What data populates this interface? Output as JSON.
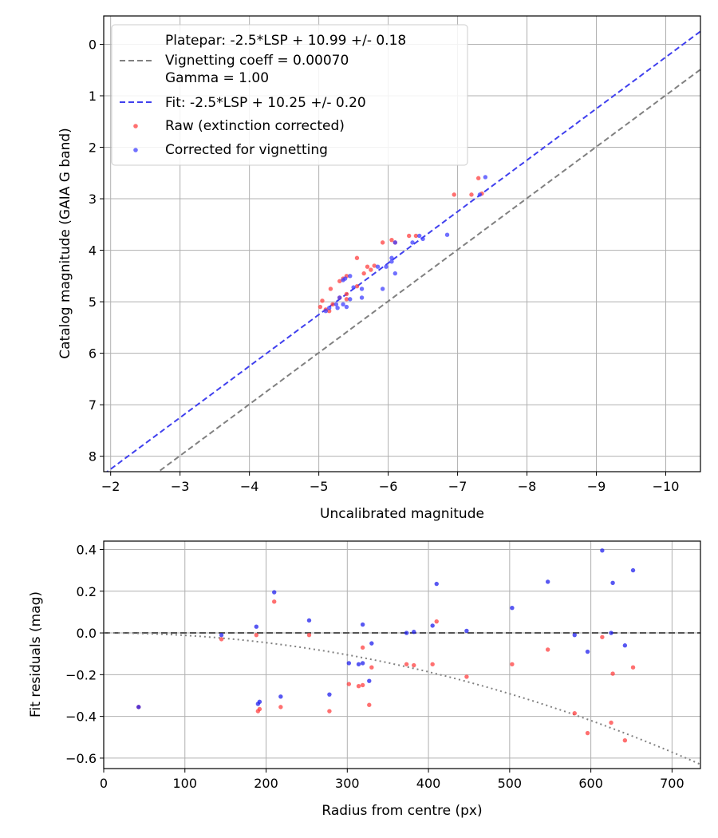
{
  "chart_data": [
    {
      "type": "scatter",
      "xlabel": "Uncalibrated magnitude",
      "ylabel": "Catalog magnitude (GAIA G band)",
      "xlim": [
        -1.9,
        -10.5
      ],
      "ylim": [
        8.3,
        -0.55
      ],
      "xticks": [
        -2,
        -3,
        -4,
        -5,
        -6,
        -7,
        -8,
        -9,
        -10
      ],
      "xtick_labels": [
        "−2",
        "−3",
        "−4",
        "−5",
        "−6",
        "−7",
        "−8",
        "−9",
        "−10"
      ],
      "yticks": [
        0,
        1,
        2,
        3,
        4,
        5,
        6,
        7,
        8
      ],
      "ytick_labels": [
        "0",
        "1",
        "2",
        "3",
        "4",
        "5",
        "6",
        "7",
        "8"
      ],
      "grid": true,
      "legend_position": "top-left",
      "legend": [
        {
          "kind": "blank",
          "label": "Platepar: -2.5*LSP + 10.99 +/- 0.18"
        },
        {
          "kind": "dash",
          "color": "#808080",
          "label": "Vignetting coeff = 0.00070"
        },
        {
          "kind": "blank",
          "label": "Gamma = 1.00"
        },
        {
          "kind": "dash",
          "color": "#4040ee",
          "label": "Fit: -2.5*LSP + 10.25 +/- 0.20"
        },
        {
          "kind": "dot",
          "color": "#ff4040",
          "label": "Raw (extinction corrected)"
        },
        {
          "kind": "dot",
          "color": "#4040ff",
          "label": "Corrected for vignetting"
        }
      ],
      "lines": [
        {
          "name": "Platepar",
          "color": "#808080",
          "intercept": 10.99
        },
        {
          "name": "Fit",
          "color": "#4040ee",
          "intercept": 10.25
        }
      ],
      "series": [
        {
          "name": "Raw (extinction corrected)",
          "color": "#ff4040",
          "points": [
            [
              -6.95,
              2.92
            ],
            [
              -7.2,
              2.92
            ],
            [
              -7.3,
              2.6
            ],
            [
              -7.35,
              2.9
            ],
            [
              -6.3,
              3.72
            ],
            [
              -6.4,
              3.72
            ],
            [
              -5.92,
              3.85
            ],
            [
              -6.05,
              3.8
            ],
            [
              -6.1,
              3.85
            ],
            [
              -5.55,
              4.15
            ],
            [
              -5.7,
              4.32
            ],
            [
              -5.75,
              4.38
            ],
            [
              -5.65,
              4.45
            ],
            [
              -5.8,
              4.3
            ],
            [
              -5.55,
              4.7
            ],
            [
              -5.4,
              4.5
            ],
            [
              -5.3,
              4.6
            ],
            [
              -5.35,
              4.55
            ],
            [
              -5.4,
              4.85
            ],
            [
              -5.4,
              4.95
            ],
            [
              -5.17,
              4.75
            ],
            [
              -5.3,
              4.92
            ],
            [
              -5.05,
              4.98
            ],
            [
              -5.2,
              5.05
            ],
            [
              -5.02,
              5.1
            ],
            [
              -5.1,
              5.15
            ],
            [
              -5.15,
              5.18
            ]
          ]
        },
        {
          "name": "Corrected for vignetting",
          "color": "#4040ff",
          "points": [
            [
              -7.4,
              2.58
            ],
            [
              -7.32,
              2.92
            ],
            [
              -6.85,
              3.7
            ],
            [
              -6.45,
              3.72
            ],
            [
              -6.5,
              3.78
            ],
            [
              -6.35,
              3.85
            ],
            [
              -6.1,
              3.85
            ],
            [
              -6.05,
              4.15
            ],
            [
              -6.05,
              4.22
            ],
            [
              -5.97,
              4.32
            ],
            [
              -5.85,
              4.32
            ],
            [
              -6.1,
              4.45
            ],
            [
              -5.45,
              4.5
            ],
            [
              -5.35,
              4.58
            ],
            [
              -5.38,
              4.55
            ],
            [
              -5.5,
              4.72
            ],
            [
              -5.62,
              4.75
            ],
            [
              -5.92,
              4.75
            ],
            [
              -5.62,
              4.92
            ],
            [
              -5.45,
              4.95
            ],
            [
              -5.3,
              4.92
            ],
            [
              -5.35,
              5.05
            ],
            [
              -5.25,
              5.05
            ],
            [
              -5.15,
              5.12
            ],
            [
              -5.1,
              5.18
            ],
            [
              -5.27,
              5.12
            ],
            [
              -5.4,
              5.1
            ]
          ]
        }
      ]
    },
    {
      "type": "scatter",
      "xlabel": "Radius from centre (px)",
      "ylabel": "Fit residuals (mag)",
      "xlim": [
        0,
        735
      ],
      "ylim": [
        -0.65,
        0.44
      ],
      "xticks": [
        0,
        100,
        200,
        300,
        400,
        500,
        600,
        700
      ],
      "xtick_labels": [
        "0",
        "100",
        "200",
        "300",
        "400",
        "500",
        "600",
        "700"
      ],
      "yticks": [
        0.4,
        0.2,
        0.0,
        -0.2,
        -0.4,
        -0.6
      ],
      "ytick_labels": [
        "0.4",
        "0.2",
        "0.0",
        "−0.2",
        "−0.4",
        "−0.6"
      ],
      "grid": true,
      "lines": [
        {
          "name": "zero",
          "color": "#555555",
          "style": "dashed",
          "value": 0.0
        },
        {
          "name": "vignetting",
          "color": "#808080",
          "style": "dotted",
          "coeff": 0.0007
        }
      ],
      "series": [
        {
          "name": "Raw (extinction corrected)",
          "color": "#ff4040",
          "points": [
            [
              43,
              -0.355
            ],
            [
              145,
              -0.03
            ],
            [
              188,
              -0.01
            ],
            [
              190,
              -0.375
            ],
            [
              192,
              -0.365
            ],
            [
              210,
              0.15
            ],
            [
              218,
              -0.355
            ],
            [
              253,
              -0.01
            ],
            [
              278,
              -0.375
            ],
            [
              302,
              -0.245
            ],
            [
              314,
              -0.255
            ],
            [
              319,
              -0.25
            ],
            [
              319,
              -0.07
            ],
            [
              327,
              -0.345
            ],
            [
              330,
              -0.165
            ],
            [
              373,
              -0.15
            ],
            [
              382,
              -0.155
            ],
            [
              405,
              -0.15
            ],
            [
              410,
              0.055
            ],
            [
              447,
              -0.21
            ],
            [
              503,
              -0.15
            ],
            [
              547,
              -0.08
            ],
            [
              580,
              -0.385
            ],
            [
              596,
              -0.48
            ],
            [
              614,
              -0.02
            ],
            [
              625,
              -0.43
            ],
            [
              627,
              -0.195
            ],
            [
              642,
              -0.515
            ],
            [
              652,
              -0.165
            ]
          ]
        },
        {
          "name": "Corrected for vignetting",
          "color": "#2020ee",
          "points": [
            [
              43,
              -0.355
            ],
            [
              145,
              -0.01
            ],
            [
              188,
              0.03
            ],
            [
              190,
              -0.34
            ],
            [
              192,
              -0.33
            ],
            [
              210,
              0.195
            ],
            [
              218,
              -0.305
            ],
            [
              253,
              0.06
            ],
            [
              278,
              -0.295
            ],
            [
              302,
              -0.145
            ],
            [
              314,
              -0.15
            ],
            [
              319,
              -0.145
            ],
            [
              319,
              0.04
            ],
            [
              327,
              -0.23
            ],
            [
              330,
              -0.05
            ],
            [
              373,
              0.0
            ],
            [
              382,
              0.005
            ],
            [
              405,
              0.035
            ],
            [
              410,
              0.235
            ],
            [
              447,
              0.01
            ],
            [
              503,
              0.12
            ],
            [
              547,
              0.245
            ],
            [
              580,
              -0.01
            ],
            [
              596,
              -0.09
            ],
            [
              614,
              0.395
            ],
            [
              625,
              0.0
            ],
            [
              627,
              0.24
            ],
            [
              642,
              -0.06
            ],
            [
              652,
              0.3
            ]
          ]
        }
      ]
    }
  ]
}
